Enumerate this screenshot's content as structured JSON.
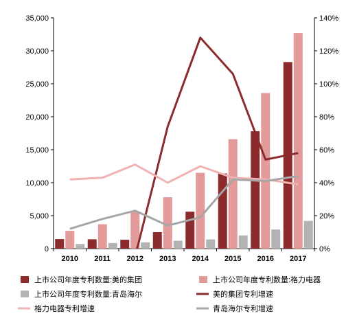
{
  "chart_data": {
    "type": "bar",
    "categories": [
      "2010",
      "2011",
      "2012",
      "2013",
      "2014",
      "2015",
      "2016",
      "2017"
    ],
    "y_left": {
      "range": [
        0,
        35000
      ],
      "ticks": [
        "0",
        "5,000",
        "10,000",
        "15,000",
        "20,000",
        "25,000",
        "30,000",
        "35,000"
      ]
    },
    "y_right": {
      "range": [
        0,
        140
      ],
      "ticks": [
        "0%",
        "20%",
        "40%",
        "60%",
        "80%",
        "100%",
        "120%",
        "140%"
      ]
    },
    "bar_series": [
      {
        "name": "上市公司年度专利数量:美的集团",
        "color": "#8b2b2b",
        "values": [
          1450,
          1420,
          1350,
          2500,
          5600,
          11400,
          17800,
          28300
        ]
      },
      {
        "name": "上市公司年度专利数量:格力电器",
        "color": "#e39a9a",
        "values": [
          2700,
          3700,
          5600,
          7800,
          11500,
          16600,
          23600,
          32700
        ]
      },
      {
        "name": "上市公司年度专利数量:青岛海尔",
        "color": "#b3b3b3",
        "values": [
          700,
          850,
          950,
          1200,
          1400,
          2000,
          2900,
          4200
        ]
      }
    ],
    "line_series": [
      {
        "name": "美的集团专利增速",
        "color": "#8b2b2b",
        "values": [
          -2,
          -3,
          -5,
          74,
          128,
          106,
          54,
          58
        ]
      },
      {
        "name": "格力电器专利增速",
        "color": "#f0b3b3",
        "values": [
          42,
          43,
          51,
          40,
          50,
          43,
          42,
          39
        ]
      },
      {
        "name": "青岛海尔专利增速",
        "color": "#a6a6a6",
        "values": [
          12,
          18,
          23,
          14,
          19,
          42,
          41,
          44
        ]
      }
    ],
    "legend_position": "bottom",
    "grid": false
  }
}
